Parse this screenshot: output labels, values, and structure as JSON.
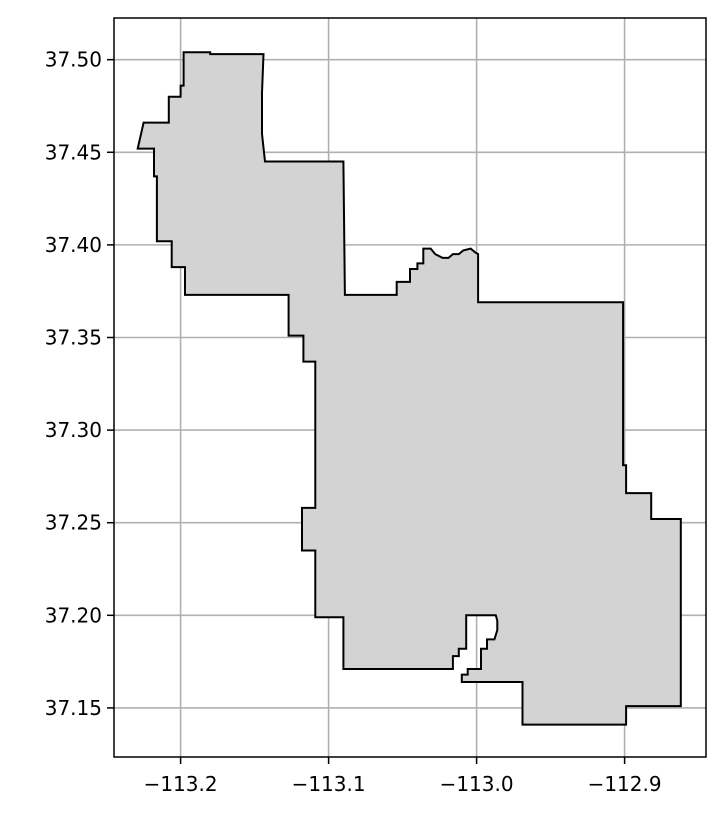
{
  "chart_data": {
    "type": "map",
    "title": "",
    "xlabel": "",
    "ylabel": "",
    "xlim": [
      -113.245,
      -112.845
    ],
    "ylim": [
      37.1235,
      37.5225
    ],
    "grid": true,
    "x_ticks": [
      {
        "value": -113.2,
        "label": "−113.2"
      },
      {
        "value": -113.1,
        "label": "−113.1"
      },
      {
        "value": -113.0,
        "label": "−113.0"
      },
      {
        "value": -112.9,
        "label": "−112.9"
      }
    ],
    "y_ticks": [
      {
        "value": 37.15,
        "label": "37.15"
      },
      {
        "value": 37.2,
        "label": "37.20"
      },
      {
        "value": 37.25,
        "label": "37.25"
      },
      {
        "value": 37.3,
        "label": "37.30"
      },
      {
        "value": 37.35,
        "label": "37.35"
      },
      {
        "value": 37.4,
        "label": "37.40"
      },
      {
        "value": 37.45,
        "label": "37.45"
      },
      {
        "value": 37.5,
        "label": "37.50"
      }
    ],
    "region": {
      "fill": "#d3d3d3",
      "stroke": "#000000",
      "boundary": [
        [
          -113.198,
          37.504
        ],
        [
          -113.18,
          37.504
        ],
        [
          -113.18,
          37.503
        ],
        [
          -113.144,
          37.503
        ],
        [
          -113.145,
          37.482
        ],
        [
          -113.145,
          37.46
        ],
        [
          -113.143,
          37.445
        ],
        [
          -113.09,
          37.445
        ],
        [
          -113.089,
          37.373
        ],
        [
          -113.054,
          37.373
        ],
        [
          -113.054,
          37.38
        ],
        [
          -113.045,
          37.38
        ],
        [
          -113.045,
          37.387
        ],
        [
          -113.04,
          37.387
        ],
        [
          -113.04,
          37.39
        ],
        [
          -113.036,
          37.39
        ],
        [
          -113.036,
          37.398
        ],
        [
          -113.031,
          37.398
        ],
        [
          -113.028,
          37.395
        ],
        [
          -113.023,
          37.393
        ],
        [
          -113.019,
          37.393
        ],
        [
          -113.016,
          37.395
        ],
        [
          -113.012,
          37.395
        ],
        [
          -113.009,
          37.397
        ],
        [
          -113.004,
          37.398
        ],
        [
          -113.001,
          37.396
        ],
        [
          -112.999,
          37.395
        ],
        [
          -112.999,
          37.369
        ],
        [
          -112.901,
          37.369
        ],
        [
          -112.901,
          37.281
        ],
        [
          -112.899,
          37.281
        ],
        [
          -112.899,
          37.266
        ],
        [
          -112.882,
          37.266
        ],
        [
          -112.882,
          37.252
        ],
        [
          -112.862,
          37.252
        ],
        [
          -112.862,
          37.151
        ],
        [
          -112.899,
          37.151
        ],
        [
          -112.899,
          37.141
        ],
        [
          -112.969,
          37.141
        ],
        [
          -112.969,
          37.164
        ],
        [
          -113.01,
          37.164
        ],
        [
          -113.01,
          37.168
        ],
        [
          -113.006,
          37.168
        ],
        [
          -113.006,
          37.171
        ],
        [
          -112.997,
          37.171
        ],
        [
          -112.997,
          37.182
        ],
        [
          -112.993,
          37.182
        ],
        [
          -112.993,
          37.187
        ],
        [
          -112.988,
          37.187
        ],
        [
          -112.986,
          37.192
        ],
        [
          -112.986,
          37.197
        ],
        [
          -112.987,
          37.2
        ],
        [
          -113.007,
          37.2
        ],
        [
          -113.007,
          37.182
        ],
        [
          -113.012,
          37.182
        ],
        [
          -113.012,
          37.178
        ],
        [
          -113.016,
          37.178
        ],
        [
          -113.016,
          37.171
        ],
        [
          -113.09,
          37.171
        ],
        [
          -113.09,
          37.199
        ],
        [
          -113.109,
          37.199
        ],
        [
          -113.109,
          37.235
        ],
        [
          -113.118,
          37.235
        ],
        [
          -113.118,
          37.258
        ],
        [
          -113.109,
          37.258
        ],
        [
          -113.109,
          37.337
        ],
        [
          -113.117,
          37.337
        ],
        [
          -113.117,
          37.351
        ],
        [
          -113.127,
          37.351
        ],
        [
          -113.127,
          37.373
        ],
        [
          -113.197,
          37.373
        ],
        [
          -113.197,
          37.388
        ],
        [
          -113.206,
          37.388
        ],
        [
          -113.206,
          37.402
        ],
        [
          -113.216,
          37.402
        ],
        [
          -113.216,
          37.437
        ],
        [
          -113.218,
          37.437
        ],
        [
          -113.218,
          37.452
        ],
        [
          -113.229,
          37.452
        ],
        [
          -113.225,
          37.466
        ],
        [
          -113.208,
          37.466
        ],
        [
          -113.208,
          37.48
        ],
        [
          -113.2,
          37.48
        ],
        [
          -113.2,
          37.486
        ],
        [
          -113.198,
          37.486
        ]
      ]
    }
  }
}
